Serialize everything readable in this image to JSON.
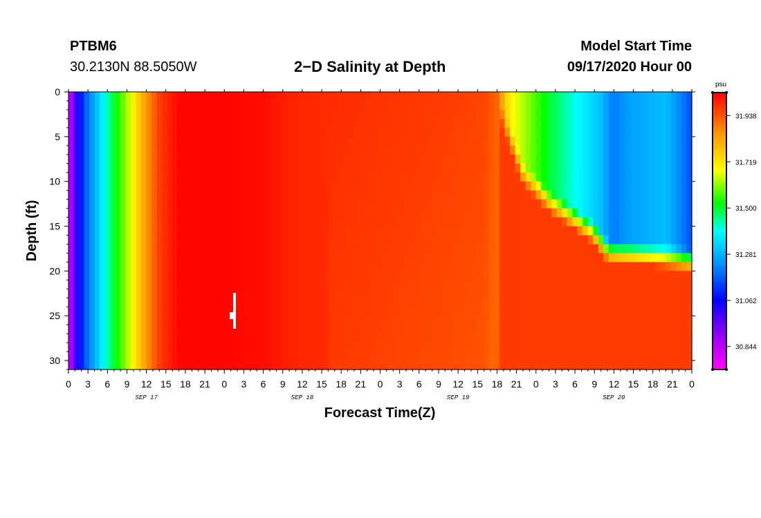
{
  "header": {
    "station": "PTBM6",
    "coords": "30.2130N 88.5050W",
    "title": "2−D Salinity at Depth",
    "model_start_label": "Model Start Time",
    "model_start_value": "09/17/2020 Hour 00"
  },
  "chart_data": {
    "type": "heatmap",
    "title": "2−D Salinity at Depth",
    "xlabel": "Forecast Time(Z)",
    "ylabel": "Depth (ft)",
    "x_range_hours": [
      0,
      96
    ],
    "x_tick_labels": [
      "0",
      "3",
      "6",
      "9",
      "12",
      "15",
      "18",
      "21",
      "0",
      "3",
      "6",
      "9",
      "12",
      "15",
      "18",
      "21",
      "0",
      "3",
      "6",
      "9",
      "12",
      "15",
      "18",
      "21",
      "0",
      "3",
      "6",
      "9",
      "12",
      "15",
      "18",
      "21",
      "0"
    ],
    "x_tick_step_hours": 3,
    "day_labels": [
      {
        "hour": 12,
        "label": "SEP 17"
      },
      {
        "hour": 36,
        "label": "SEP 18"
      },
      {
        "hour": 60,
        "label": "SEP 19"
      },
      {
        "hour": 84,
        "label": "SEP 20"
      }
    ],
    "y_range_ft": [
      0,
      31
    ],
    "y_ticks": [
      0,
      5,
      10,
      15,
      20,
      25,
      30
    ],
    "y_inverted": true,
    "colorbar": {
      "unit": "psu",
      "labels": [
        "31.938",
        "31.719",
        "31.500",
        "31.281",
        "31.062",
        "30.844"
      ],
      "label_values": [
        31.938,
        31.719,
        31.5,
        31.281,
        31.062,
        30.844
      ],
      "min": 30.735,
      "max": 32.047,
      "colors": [
        "#ff00ff",
        "#9900ff",
        "#0000ff",
        "#0088ff",
        "#00ffff",
        "#00ff00",
        "#ffff00",
        "#ff9900",
        "#ff0000"
      ]
    },
    "surface_profile": [
      {
        "hour": 0,
        "value": 30.78
      },
      {
        "hour": 0.8,
        "value": 30.95
      },
      {
        "hour": 1.5,
        "value": 31.05
      },
      {
        "hour": 3,
        "value": 31.2
      },
      {
        "hour": 5,
        "value": 31.35
      },
      {
        "hour": 7,
        "value": 31.5
      },
      {
        "hour": 9,
        "value": 31.62
      },
      {
        "hour": 11,
        "value": 31.78
      },
      {
        "hour": 12.5,
        "value": 31.88
      },
      {
        "hour": 14,
        "value": 31.97
      },
      {
        "hour": 17,
        "value": 32.04
      },
      {
        "hour": 24,
        "value": 32.04
      },
      {
        "hour": 30,
        "value": 32.03
      },
      {
        "hour": 35,
        "value": 32.0
      },
      {
        "hour": 42,
        "value": 31.99
      },
      {
        "hour": 50,
        "value": 31.98
      },
      {
        "hour": 58,
        "value": 31.97
      },
      {
        "hour": 64,
        "value": 31.96
      },
      {
        "hour": 66,
        "value": 31.92
      },
      {
        "hour": 67,
        "value": 31.8
      },
      {
        "hour": 68,
        "value": 31.7
      },
      {
        "hour": 71,
        "value": 31.6
      },
      {
        "hour": 74,
        "value": 31.5
      },
      {
        "hour": 78,
        "value": 31.4
      },
      {
        "hour": 82,
        "value": 31.3
      },
      {
        "hour": 84,
        "value": 31.2
      },
      {
        "hour": 86,
        "value": 31.25
      },
      {
        "hour": 92,
        "value": 31.3
      },
      {
        "hour": 96,
        "value": 31.15
      }
    ],
    "fresh_layer_bottom_ft": [
      {
        "hour": 66,
        "depth": 0
      },
      {
        "hour": 68,
        "depth": 4
      },
      {
        "hour": 70,
        "depth": 8
      },
      {
        "hour": 74,
        "depth": 11
      },
      {
        "hour": 78,
        "depth": 13
      },
      {
        "hour": 81,
        "depth": 14.5
      },
      {
        "hour": 83,
        "depth": 16.5
      },
      {
        "hour": 90,
        "depth": 17
      },
      {
        "hour": 96,
        "depth": 17.5
      }
    ],
    "deep_value": 31.97,
    "gap_marker_hour": 25.5
  }
}
